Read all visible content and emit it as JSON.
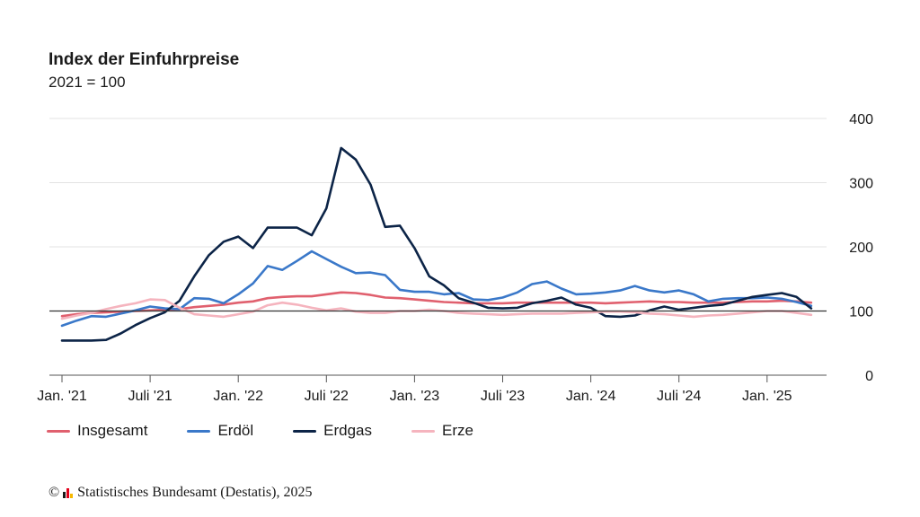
{
  "chart_data": {
    "type": "line",
    "title": "Index der Einfuhrpreise",
    "subtitle": "2021 = 100",
    "ylim": [
      0,
      400
    ],
    "yticks": [
      0,
      100,
      200,
      300,
      400
    ],
    "x_tick_labels": [
      "Jan. '21",
      "Juli '21",
      "Jan. '22",
      "Juli '22",
      "Jan. '23",
      "Juli '23",
      "Jan. '24",
      "Juli '24",
      "Jan. '25"
    ],
    "x_tick_months": [
      0,
      6,
      12,
      18,
      24,
      30,
      36,
      42,
      48
    ],
    "x": [
      "2021-01",
      "2021-02",
      "2021-03",
      "2021-04",
      "2021-05",
      "2021-06",
      "2021-07",
      "2021-08",
      "2021-09",
      "2021-10",
      "2021-11",
      "2021-12",
      "2022-01",
      "2022-02",
      "2022-03",
      "2022-04",
      "2022-05",
      "2022-06",
      "2022-07",
      "2022-08",
      "2022-09",
      "2022-10",
      "2022-11",
      "2022-12",
      "2023-01",
      "2023-02",
      "2023-03",
      "2023-04",
      "2023-05",
      "2023-06",
      "2023-07",
      "2023-08",
      "2023-09",
      "2023-10",
      "2023-11",
      "2023-12",
      "2024-01",
      "2024-02",
      "2024-03",
      "2024-04",
      "2024-05",
      "2024-06",
      "2024-07",
      "2024-08",
      "2024-09",
      "2024-10",
      "2024-11",
      "2024-12",
      "2025-01",
      "2025-02",
      "2025-03",
      "2025-04"
    ],
    "reference_line": 100,
    "grid": true,
    "legend_position": "bottom-left",
    "series": [
      {
        "name": "Insgesamt",
        "color": "#e0606e",
        "values": [
          92,
          95,
          97,
          98,
          99,
          100,
          101,
          102,
          103,
          106,
          108,
          110,
          113,
          115,
          120,
          122,
          123,
          123,
          126,
          129,
          128,
          125,
          121,
          120,
          118,
          116,
          114,
          113,
          112,
          112,
          112,
          113,
          113,
          113,
          113,
          113,
          113,
          112,
          113,
          114,
          115,
          114,
          114,
          113,
          113,
          113,
          114,
          115,
          115,
          116,
          115,
          113
        ]
      },
      {
        "name": "Erdöl",
        "color": "#3a78c9",
        "values": [
          77,
          85,
          92,
          91,
          96,
          101,
          107,
          104,
          103,
          120,
          119,
          112,
          126,
          143,
          170,
          164,
          178,
          193,
          181,
          169,
          159,
          160,
          156,
          133,
          130,
          130,
          126,
          128,
          118,
          117,
          121,
          129,
          142,
          146,
          135,
          126,
          127,
          129,
          132,
          139,
          132,
          129,
          132,
          126,
          115,
          119,
          120,
          120,
          121,
          119,
          114,
          108
        ]
      },
      {
        "name": "Erdgas",
        "color": "#0c2447",
        "values": [
          54,
          54,
          54,
          55,
          65,
          78,
          89,
          98,
          116,
          154,
          187,
          208,
          216,
          198,
          230,
          230,
          230,
          218,
          260,
          354,
          336,
          297,
          231,
          233,
          198,
          154,
          140,
          120,
          113,
          105,
          104,
          105,
          112,
          116,
          121,
          110,
          105,
          92,
          91,
          93,
          101,
          107,
          102,
          105,
          108,
          110,
          116,
          122,
          125,
          128,
          122,
          104
        ]
      },
      {
        "name": "Erze",
        "color": "#f5b4be",
        "values": [
          88,
          93,
          97,
          103,
          108,
          112,
          118,
          117,
          105,
          95,
          93,
          91,
          95,
          99,
          109,
          113,
          110,
          105,
          101,
          104,
          99,
          97,
          97,
          100,
          100,
          102,
          100,
          97,
          96,
          95,
          94,
          95,
          96,
          96,
          96,
          97,
          98,
          99,
          99,
          98,
          96,
          95,
          93,
          91,
          93,
          94,
          96,
          98,
          100,
          100,
          97,
          94
        ]
      }
    ]
  },
  "footer": {
    "copyright_symbol": "©",
    "source": "Statistisches Bundesamt (Destatis), 2025"
  }
}
